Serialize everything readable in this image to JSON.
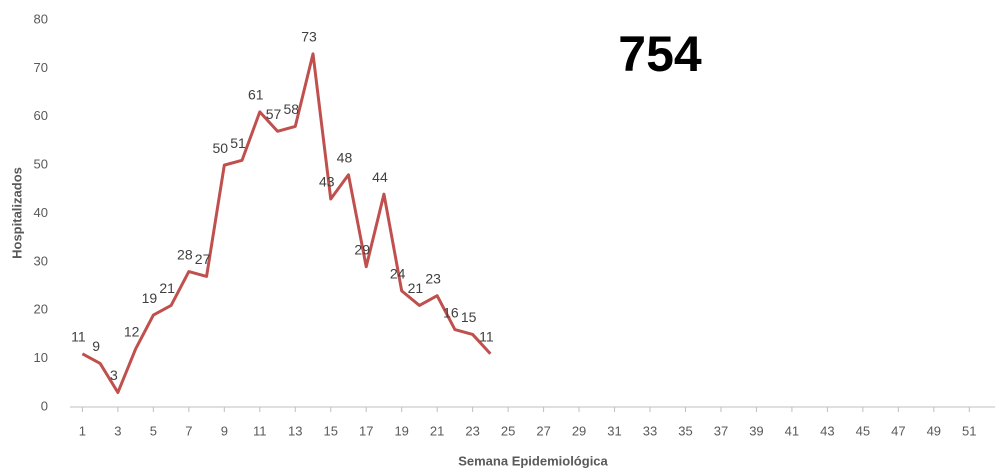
{
  "chart_data": {
    "type": "line",
    "annotation": "754",
    "x_label": "Semana Epidemiológica",
    "y_label": "Hospitalizados",
    "x": [
      1,
      2,
      3,
      4,
      5,
      6,
      7,
      8,
      9,
      10,
      11,
      12,
      13,
      14,
      15,
      16,
      17,
      18,
      19,
      20,
      21,
      22,
      23,
      24
    ],
    "series": [
      {
        "name": "Hospitalizados",
        "color": "#c0504d",
        "values": [
          11,
          9,
          3,
          12,
          19,
          21,
          28,
          27,
          50,
          51,
          61,
          57,
          58,
          73,
          43,
          48,
          29,
          44,
          24,
          21,
          23,
          16,
          15,
          11
        ]
      }
    ],
    "xlim": [
      0.3,
      52.45
    ],
    "xticks": [
      1,
      3,
      5,
      7,
      9,
      11,
      13,
      15,
      17,
      19,
      21,
      23,
      25,
      27,
      29,
      31,
      33,
      35,
      37,
      39,
      41,
      43,
      45,
      47,
      49,
      51
    ],
    "ylim": [
      0,
      80
    ],
    "yticks": [
      0,
      10,
      20,
      30,
      40,
      50,
      60,
      70,
      80
    ],
    "grid": false
  }
}
